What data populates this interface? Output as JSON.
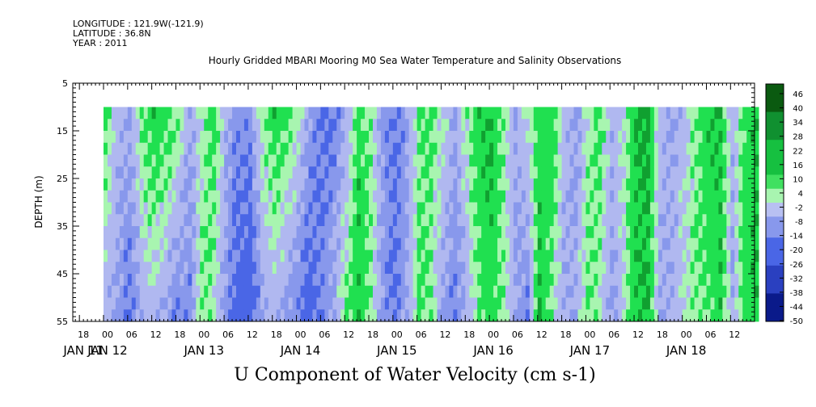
{
  "header": {
    "longitude": "LONGITUDE : 121.9W(-121.9)",
    "latitude": "LATITUDE : 36.8N",
    "year": "YEAR : 2011"
  },
  "chart_data": {
    "type": "heatmap",
    "title": "Hourly Gridded MBARI Mooring M0 Sea Water Temperature and Salinity Observations",
    "xlabel": "U Component of Water Velocity (cm s-1)",
    "ylabel": "DEPTH (m)",
    "y_ticks": [
      5,
      15,
      25,
      35,
      45,
      55
    ],
    "ylim": [
      55,
      5
    ],
    "data_depth_range": [
      10,
      55
    ],
    "x_hour_ticks": [
      "18",
      "00",
      "06",
      "12",
      "18",
      "00",
      "06",
      "12",
      "18",
      "00",
      "06",
      "12",
      "18",
      "00",
      "06",
      "12",
      "18",
      "00",
      "06",
      "12",
      "18",
      "00",
      "06",
      "12",
      "18",
      "00",
      "06",
      "12"
    ],
    "x_date_labels": [
      "JAN 11",
      "JAN 12",
      "JAN 13",
      "JAN 14",
      "JAN 15",
      "JAN 16",
      "JAN 17",
      "JAN 18"
    ],
    "data_start": "JAN 11 23:00",
    "data_end": "JAN 18 14:00",
    "colorbar_labels": [
      "46",
      "40",
      "34",
      "28",
      "22",
      "16",
      "10",
      "4",
      "-2",
      "-8",
      "-14",
      "-20",
      "-26",
      "-32",
      "-38",
      "-44",
      "-50"
    ],
    "colorbar_range": [
      -50,
      52
    ],
    "colors": {
      "positive_strong": "#10a030",
      "positive_medium": "#20e050",
      "positive_light": "#a8f5b0",
      "negative_light": "#b0b8f0",
      "negative_medium": "#8898ec",
      "negative_strong": "#4a66e6",
      "deep_negative": "#0a1a8a",
      "deep_positive": "#0a5a10"
    },
    "velocity_columns": [
      {
        "hour": 0,
        "top": 8,
        "bottom": -4
      },
      {
        "hour": 3,
        "top": -2,
        "bottom": -9
      },
      {
        "hour": 6,
        "top": -6,
        "bottom": -12
      },
      {
        "hour": 9,
        "top": 6,
        "bottom": -5
      },
      {
        "hour": 12,
        "top": 12,
        "bottom": -2
      },
      {
        "hour": 15,
        "top": 10,
        "bottom": -6
      },
      {
        "hour": 18,
        "top": 6,
        "bottom": -12
      },
      {
        "hour": 21,
        "top": -6,
        "bottom": -10
      },
      {
        "hour": 24,
        "top": 2,
        "bottom": 6
      },
      {
        "hour": 27,
        "top": 10,
        "bottom": 3
      },
      {
        "hour": 30,
        "top": -4,
        "bottom": -10
      },
      {
        "hour": 33,
        "top": -10,
        "bottom": -16
      },
      {
        "hour": 36,
        "top": -9,
        "bottom": -18
      },
      {
        "hour": 39,
        "top": 4,
        "bottom": -8
      },
      {
        "hour": 42,
        "top": 12,
        "bottom": -4
      },
      {
        "hour": 45,
        "top": 9,
        "bottom": -8
      },
      {
        "hour": 48,
        "top": 2,
        "bottom": -12
      },
      {
        "hour": 51,
        "top": -8,
        "bottom": -16
      },
      {
        "hour": 54,
        "top": -14,
        "bottom": -10
      },
      {
        "hour": 57,
        "top": -12,
        "bottom": -4
      },
      {
        "hour": 60,
        "top": -4,
        "bottom": 6
      },
      {
        "hour": 63,
        "top": 10,
        "bottom": 14
      },
      {
        "hour": 66,
        "top": 4,
        "bottom": 4
      },
      {
        "hour": 69,
        "top": -8,
        "bottom": -8
      },
      {
        "hour": 72,
        "top": -12,
        "bottom": -14
      },
      {
        "hour": 75,
        "top": -8,
        "bottom": -6
      },
      {
        "hour": 78,
        "top": 6,
        "bottom": 8
      },
      {
        "hour": 81,
        "top": 8,
        "bottom": 4
      },
      {
        "hour": 84,
        "top": 2,
        "bottom": -8
      },
      {
        "hour": 87,
        "top": -6,
        "bottom": -12
      },
      {
        "hour": 90,
        "top": 4,
        "bottom": -4
      },
      {
        "hour": 93,
        "top": 12,
        "bottom": 6
      },
      {
        "hour": 96,
        "top": 14,
        "bottom": 10
      },
      {
        "hour": 99,
        "top": 4,
        "bottom": 4
      },
      {
        "hour": 102,
        "top": -6,
        "bottom": -6
      },
      {
        "hour": 105,
        "top": 2,
        "bottom": -12
      },
      {
        "hour": 108,
        "top": 10,
        "bottom": 14
      },
      {
        "hour": 111,
        "top": 12,
        "bottom": 4
      },
      {
        "hour": 114,
        "top": -2,
        "bottom": -6
      },
      {
        "hour": 117,
        "top": -8,
        "bottom": -4
      },
      {
        "hour": 120,
        "top": 2,
        "bottom": 8
      },
      {
        "hour": 123,
        "top": 8,
        "bottom": 2
      },
      {
        "hour": 126,
        "top": -4,
        "bottom": -8
      },
      {
        "hour": 129,
        "top": 2,
        "bottom": 2
      },
      {
        "hour": 132,
        "top": 14,
        "bottom": 12
      },
      {
        "hour": 135,
        "top": 16,
        "bottom": 14
      },
      {
        "hour": 138,
        "top": -2,
        "bottom": -6
      },
      {
        "hour": 141,
        "top": -6,
        "bottom": -4
      },
      {
        "hour": 144,
        "top": -2,
        "bottom": 2
      },
      {
        "hour": 147,
        "top": 6,
        "bottom": 6
      },
      {
        "hour": 150,
        "top": 12,
        "bottom": 6
      },
      {
        "hour": 153,
        "top": 14,
        "bottom": 12
      },
      {
        "hour": 156,
        "top": -4,
        "bottom": -6
      },
      {
        "hour": 159,
        "top": 8,
        "bottom": 10
      },
      {
        "hour": 162,
        "top": 14,
        "bottom": 12
      },
      {
        "hour": 163,
        "top": 16,
        "bottom": 14
      }
    ]
  }
}
